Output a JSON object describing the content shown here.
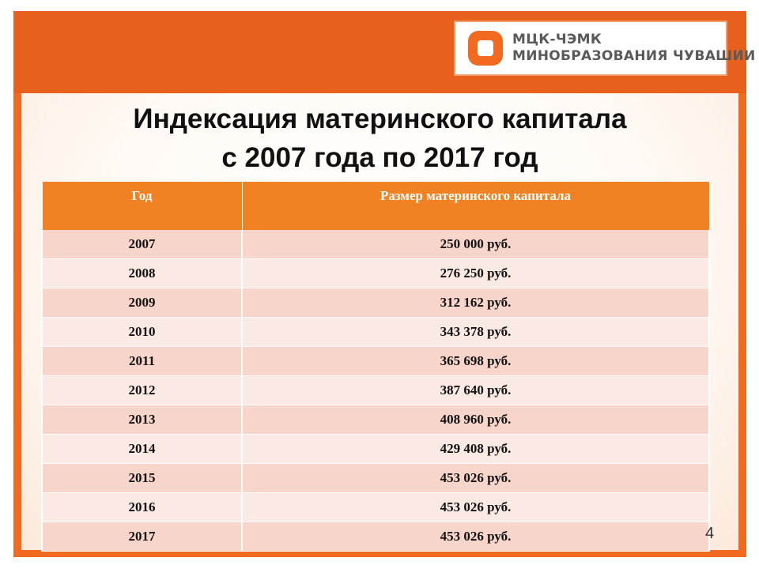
{
  "logo": {
    "line1": "МЦК-ЧЭМК",
    "line2": "МИНОБРАЗОВАНИЯ ЧУВАШИИ",
    "icon": "orange-square-ring-logo-icon"
  },
  "title": {
    "line1": "Индексация материнского капитала",
    "line2": "с 2007 года по 2017 год"
  },
  "table": {
    "headers": [
      "Год",
      "Размер материнского капитала"
    ],
    "rows": [
      [
        "2007",
        "250 000 руб."
      ],
      [
        "2008",
        "276 250 руб."
      ],
      [
        "2009",
        "312 162 руб."
      ],
      [
        "2010",
        "343 378 руб."
      ],
      [
        "2011",
        "365 698 руб."
      ],
      [
        "2012",
        "387 640 руб."
      ],
      [
        "2013",
        "408 960 руб."
      ],
      [
        "2014",
        "429 408 руб."
      ],
      [
        "2015",
        "453 026 руб."
      ],
      [
        "2016",
        "453 026 руб."
      ],
      [
        "2017",
        "453 026 руб."
      ]
    ]
  },
  "page_number": "4",
  "colors": {
    "frame": "#f26a1f",
    "header_row": "#f08224",
    "row_odd": "#f8d5cb",
    "row_even": "#fbe9e4"
  }
}
